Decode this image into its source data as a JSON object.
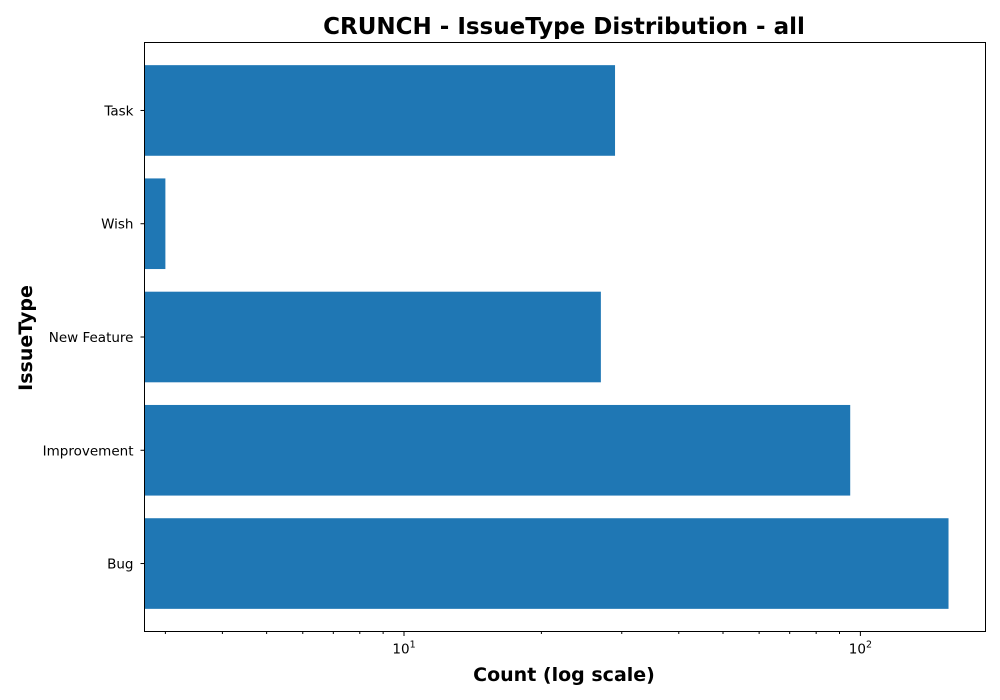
{
  "chart_data": {
    "type": "bar",
    "orientation": "horizontal",
    "title": "CRUNCH - IssueType Distribution - all",
    "xlabel": "Count (log scale)",
    "ylabel": "IssueType",
    "x_scale": "log",
    "xlim": [
      2.7,
      188
    ],
    "categories": [
      "Bug",
      "Improvement",
      "New Feature",
      "Wish",
      "Task"
    ],
    "values": [
      156,
      95,
      27,
      3,
      29
    ],
    "x_tick_labels": [
      {
        "value": 10,
        "base": "10",
        "exponent": "1"
      },
      {
        "value": 100,
        "base": "10",
        "exponent": "2"
      }
    ],
    "bar_color": "#1f77b4",
    "grid": false,
    "legend": "none"
  }
}
